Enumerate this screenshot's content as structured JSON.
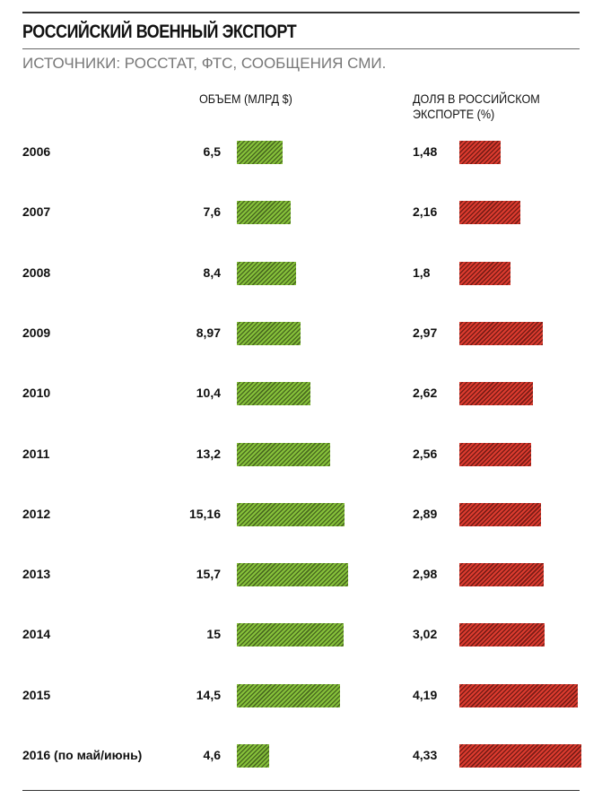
{
  "chart_data": {
    "type": "bar",
    "title": "РОССИЙСКИЙ ВОЕННЫЙ ЭКСПОРТ",
    "subtitle": "ИСТОЧНИКИ: РОССТАТ, ФТС, СООБЩЕНИЯ СМИ.",
    "categories": [
      "2006",
      "2007",
      "2008",
      "2009",
      "2010",
      "2011",
      "2012",
      "2013",
      "2014",
      "2015",
      "2016 (по май/июнь)"
    ],
    "series": [
      {
        "name": "ОБЪЕМ (МЛРД $)",
        "color": "#7cb832",
        "values": [
          6.5,
          7.6,
          8.4,
          8.97,
          10.4,
          13.2,
          15.16,
          15.7,
          15,
          14.5,
          4.6
        ],
        "labels": [
          "6,5",
          "7,6",
          "8,4",
          "8,97",
          "10,4",
          "13,2",
          "15,16",
          "15,7",
          "15",
          "14,5",
          "4,6"
        ]
      },
      {
        "name": "ДОЛЯ В РОССИЙСКОМ ЭКСПОРТЕ (%)",
        "color": "#d63a2e",
        "values": [
          1.48,
          2.16,
          1.8,
          2.97,
          2.62,
          2.56,
          2.89,
          2.98,
          3.02,
          4.19,
          4.33
        ],
        "labels": [
          "1,48",
          "2,16",
          "1,8",
          "2,97",
          "2,62",
          "2,56",
          "2,89",
          "2,98",
          "3,02",
          "4,19",
          "4,33"
        ]
      }
    ]
  }
}
